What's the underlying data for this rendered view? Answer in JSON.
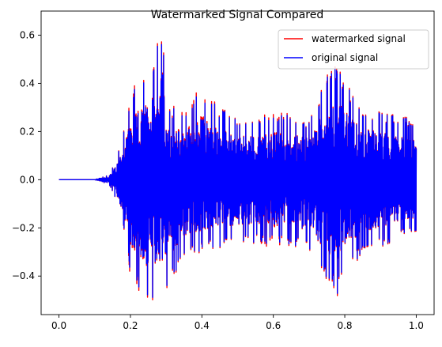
{
  "chart_data": {
    "type": "line",
    "title": "Watermarked Signal Compared",
    "xlabel": "",
    "ylabel": "",
    "xlim": [
      -0.05,
      1.05
    ],
    "ylim": [
      -0.56,
      0.7
    ],
    "x_ticks": [
      0.0,
      0.2,
      0.4,
      0.6,
      0.8,
      1.0
    ],
    "x_tick_labels": [
      "0.0",
      "0.2",
      "0.4",
      "0.6",
      "0.8",
      "1.0"
    ],
    "y_ticks": [
      -0.4,
      -0.2,
      0.0,
      0.2,
      0.4,
      0.6
    ],
    "y_tick_labels": [
      "−0.4",
      "−0.2",
      "0.0",
      "0.2",
      "0.4",
      "0.6"
    ],
    "grid": false,
    "legend_position": "top-right",
    "series": [
      {
        "name": "watermarked signal",
        "color": "#ff0000",
        "x": [
          0.0,
          0.1,
          0.12,
          0.14,
          0.16,
          0.18,
          0.2,
          0.25,
          0.29,
          0.3,
          0.35,
          0.4,
          0.45,
          0.5,
          0.55,
          0.6,
          0.65,
          0.7,
          0.75,
          0.78,
          0.8,
          0.85,
          0.9,
          0.95,
          1.0
        ],
        "upper_envelope": [
          0.0,
          0.0,
          0.01,
          0.02,
          0.08,
          0.2,
          0.36,
          0.46,
          0.64,
          0.3,
          0.3,
          0.38,
          0.3,
          0.25,
          0.26,
          0.28,
          0.27,
          0.24,
          0.44,
          0.48,
          0.4,
          0.3,
          0.28,
          0.26,
          0.25
        ],
        "lower_envelope": [
          0.0,
          0.0,
          -0.01,
          -0.02,
          -0.08,
          -0.2,
          -0.4,
          -0.52,
          -0.52,
          -0.46,
          -0.34,
          -0.3,
          -0.28,
          -0.26,
          -0.26,
          -0.28,
          -0.27,
          -0.3,
          -0.42,
          -0.48,
          -0.4,
          -0.3,
          -0.28,
          -0.24,
          -0.22
        ]
      },
      {
        "name": "original signal",
        "color": "#0000ff",
        "x": [
          0.0,
          0.1,
          0.12,
          0.14,
          0.16,
          0.18,
          0.2,
          0.25,
          0.29,
          0.3,
          0.35,
          0.4,
          0.45,
          0.5,
          0.55,
          0.6,
          0.65,
          0.7,
          0.75,
          0.78,
          0.8,
          0.85,
          0.9,
          0.95,
          1.0
        ],
        "upper_envelope": [
          0.0,
          0.0,
          0.01,
          0.02,
          0.08,
          0.2,
          0.35,
          0.46,
          0.64,
          0.3,
          0.29,
          0.37,
          0.3,
          0.25,
          0.26,
          0.27,
          0.27,
          0.24,
          0.44,
          0.48,
          0.4,
          0.3,
          0.28,
          0.26,
          0.25
        ],
        "lower_envelope": [
          0.0,
          0.0,
          -0.01,
          -0.02,
          -0.08,
          -0.2,
          -0.39,
          -0.52,
          -0.52,
          -0.46,
          -0.34,
          -0.3,
          -0.28,
          -0.26,
          -0.26,
          -0.27,
          -0.27,
          -0.3,
          -0.42,
          -0.48,
          -0.4,
          -0.3,
          -0.28,
          -0.24,
          -0.22
        ]
      }
    ]
  }
}
